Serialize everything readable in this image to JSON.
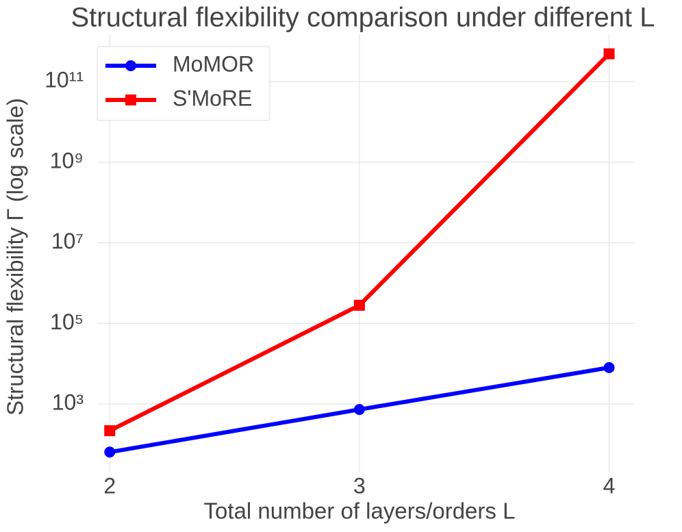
{
  "chart_data": {
    "type": "line",
    "title": "Structural flexibility comparison under different L",
    "x_label": "Total number of layers/orders L",
    "y_label": "Structural flexibility Γ (log scale)",
    "x": [
      2,
      3,
      4
    ],
    "series": [
      {
        "name": "MoMOR",
        "color": "#0000ff",
        "marker": "circle",
        "values": [
          64,
          729,
          8000
        ]
      },
      {
        "name": "S'MoRE",
        "color": "#ff0000",
        "marker": "square",
        "values": [
          217,
          281000,
          490000000000
        ]
      }
    ],
    "xlim": [
      1.95,
      4.1
    ],
    "xticks": [
      2,
      3,
      4
    ],
    "ylim": [
      20,
      1500000000000
    ],
    "yticks": [
      {
        "value": 1000,
        "label": "10³"
      },
      {
        "value": 100000,
        "label": "10⁵"
      },
      {
        "value": 10000000,
        "label": "10⁷"
      },
      {
        "value": 1000000000,
        "label": "10⁹"
      },
      {
        "value": 100000000000,
        "label": "10¹¹"
      }
    ],
    "log_y": true,
    "grid": true,
    "legend": "upper left"
  }
}
